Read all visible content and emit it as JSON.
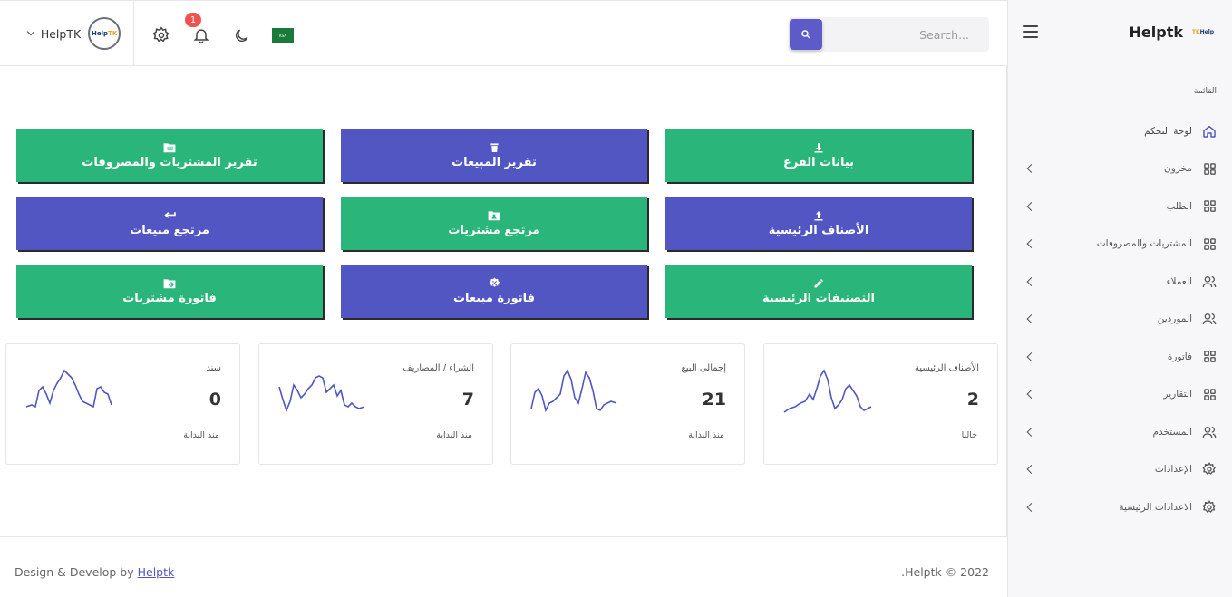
{
  "sidebar": {
    "brand": "Helptk",
    "logo_text": "HelpTK",
    "section_label": "القائمة",
    "items": [
      {
        "label": "لوحة التحكم",
        "icon": "home-icon",
        "active": true,
        "has_chevron": false
      },
      {
        "label": "مخزون",
        "icon": "grid-icon",
        "has_chevron": true
      },
      {
        "label": "الطلب",
        "icon": "grid-icon",
        "has_chevron": true
      },
      {
        "label": "المشتريات والمصروفات",
        "icon": "grid-icon",
        "has_chevron": true
      },
      {
        "label": "العملاء",
        "icon": "users-icon",
        "has_chevron": true
      },
      {
        "label": "الموردين",
        "icon": "users-icon",
        "has_chevron": true
      },
      {
        "label": "فاتورة",
        "icon": "grid-icon",
        "has_chevron": true
      },
      {
        "label": "التقارير",
        "icon": "grid-icon",
        "has_chevron": true
      },
      {
        "label": "المستخدم",
        "icon": "users-icon",
        "has_chevron": true
      },
      {
        "label": "الإعدادات",
        "icon": "gear-icon",
        "has_chevron": true
      },
      {
        "label": "الاعدادات الرئيسية",
        "icon": "gear-icon",
        "has_chevron": true
      }
    ]
  },
  "topbar": {
    "user_name": "HelpTK",
    "avatar_text": "HelpTK",
    "notification_count": "1",
    "flag_text": "KSA",
    "search_placeholder": "Search..."
  },
  "tiles": [
    {
      "label": "بيانات الفرع",
      "icon": "download-icon",
      "color": "#2ab67a"
    },
    {
      "label": "تقرير المبيعات",
      "icon": "trash-icon",
      "color": "#5156c2"
    },
    {
      "label": "تقرير المشتريات والمصروفات",
      "icon": "folder-table-icon",
      "color": "#2ab67a"
    },
    {
      "label": "الأصناف الرئيسية",
      "icon": "upload-icon",
      "color": "#5156c2"
    },
    {
      "label": "مرتجع مشتريات",
      "icon": "folder-user-icon",
      "color": "#2ab67a"
    },
    {
      "label": "مرتجع مبيعات",
      "icon": "return-arrow-icon",
      "color": "#5156c2"
    },
    {
      "label": "التصنيفات الرئيسية",
      "icon": "pencil-icon",
      "color": "#2ab67a"
    },
    {
      "label": "فاتورة مبيعات",
      "icon": "badge-percent-icon",
      "color": "#5156c2"
    },
    {
      "label": "فاتورة مشتريات",
      "icon": "folder-info-icon",
      "color": "#2ab67a"
    }
  ],
  "stats": [
    {
      "title": "الأصناف الرئيسية",
      "value": "2",
      "subtitle": "حاليا"
    },
    {
      "title": "إجمالى البيع",
      "value": "21",
      "subtitle": "منذ البداية"
    },
    {
      "title": "الشراء / المصاريف",
      "value": "7",
      "subtitle": "منذ البداية"
    },
    {
      "title": "سند",
      "value": "0",
      "subtitle": "منذ البداية"
    }
  ],
  "footer": {
    "left_prefix": "Design & Develop by",
    "left_link": "Helptk",
    "right": ".Helptk © 2022"
  },
  "colors": {
    "green": "#2ab67a",
    "blue": "#5156c2",
    "accent": "#5c5bc8",
    "badge": "#ef5350"
  }
}
